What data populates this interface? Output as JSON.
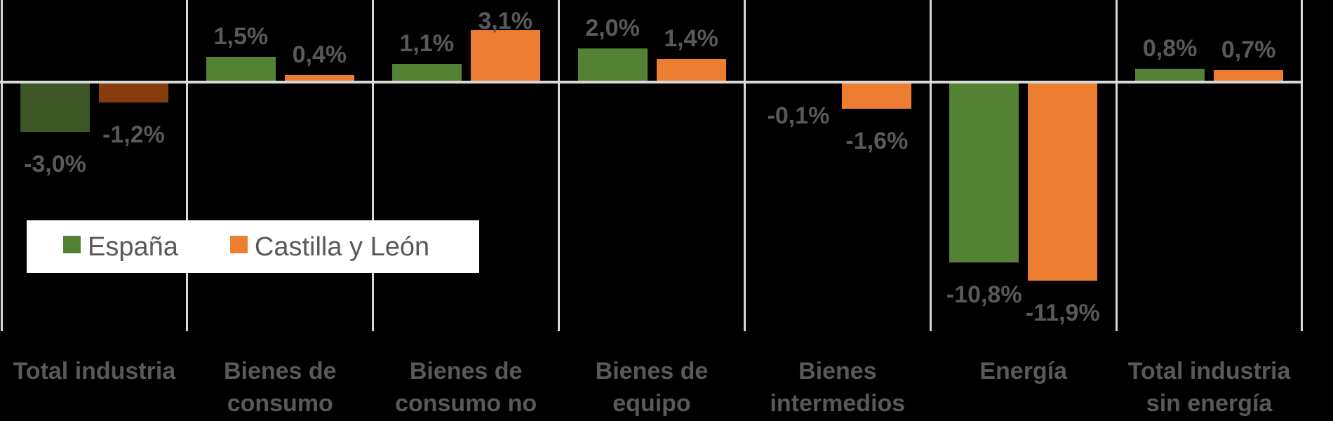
{
  "chart_data": {
    "type": "bar",
    "title": "",
    "categories": [
      {
        "lines": [
          "Total industria"
        ]
      },
      {
        "lines": [
          "Bienes de",
          "consumo"
        ]
      },
      {
        "lines": [
          "Bienes de",
          "consumo no"
        ]
      },
      {
        "lines": [
          "Bienes de equipo"
        ]
      },
      {
        "lines": [
          "Bienes",
          "intermedios"
        ]
      },
      {
        "lines": [
          "Energía"
        ]
      },
      {
        "lines": [
          "Total industria",
          "sin energía"
        ]
      }
    ],
    "series": [
      {
        "name": "España",
        "color": "#548235",
        "emphasis_color": "#3C5626",
        "values": [
          -3.0,
          1.5,
          1.1,
          2.0,
          -0.1,
          -10.8,
          0.8
        ],
        "labels": [
          "-3,0%",
          "1,5%",
          "1,1%",
          "2,0%",
          "-0,1%",
          "-10,8%",
          "0,8%"
        ]
      },
      {
        "name": "Castilla y León",
        "color": "#ED7D31",
        "emphasis_color": "#853D10",
        "values": [
          -1.2,
          0.4,
          3.1,
          1.4,
          -1.6,
          -11.9,
          0.7
        ],
        "labels": [
          "-1,2%",
          "0,4%",
          "3,1%",
          "1,4%",
          "-1,6%",
          "-11,9%",
          "0,7%"
        ]
      }
    ],
    "emphasized_category_index": 0,
    "unit": "%",
    "decimal_separator": ",",
    "ylim": [
      -14.9,
      4.9
    ],
    "grid": "vertical category separators and zero baseline, no y-axis ticks",
    "legend_position": "inside top-left, white box overlay",
    "data_label_position": "outside end of each bar"
  },
  "legend": {
    "items": [
      {
        "label": "España",
        "color": "#548235"
      },
      {
        "label": "Castilla y León",
        "color": "#ED7D31"
      }
    ]
  },
  "colors": {
    "background": "#000000",
    "gridline": "#D9D9D9",
    "label_text": "#595959",
    "legend_bg": "#FFFFFF"
  }
}
